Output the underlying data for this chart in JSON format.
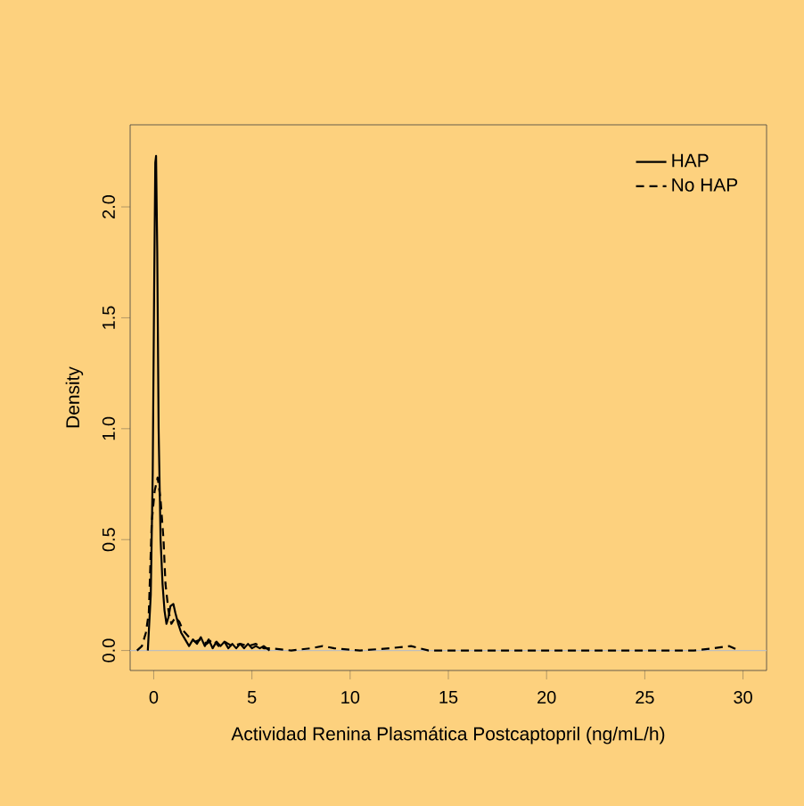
{
  "chart_data": {
    "type": "line",
    "xlabel": "Actividad Renina Plasmática Postcaptopril (ng/mL/h)",
    "ylabel": "Density",
    "xlim": [
      -1.2,
      31.2
    ],
    "ylim": [
      -0.09,
      2.37
    ],
    "xticks": [
      0,
      5,
      10,
      15,
      20,
      25,
      30
    ],
    "yticks": [
      {
        "value": 0,
        "label": "0.0"
      },
      {
        "value": 0.5,
        "label": "0.5"
      },
      {
        "value": 1,
        "label": "1.0"
      },
      {
        "value": 1.5,
        "label": "1.5"
      },
      {
        "value": 2,
        "label": "2.0"
      }
    ],
    "legend": "top right",
    "grid": false,
    "ref_lines": [
      {
        "axis": "y",
        "value": 0,
        "color": "#bebebe"
      }
    ],
    "series": [
      {
        "name": "HAP",
        "color": "#000000",
        "line_style": "solid",
        "x": [
          -0.3,
          -0.15,
          -0.05,
          0.02,
          0.08,
          0.12,
          0.18,
          0.25,
          0.35,
          0.45,
          0.55,
          0.65,
          0.75,
          0.85,
          1.0,
          1.1,
          1.25,
          1.4,
          1.6,
          1.8,
          2.0,
          2.2,
          2.4,
          2.6,
          2.8,
          3.0,
          3.2,
          3.4,
          3.6,
          3.8,
          4.0,
          4.2,
          4.4,
          4.6,
          4.8,
          5.0,
          5.2,
          5.4,
          5.6,
          5.9
        ],
        "values": [
          0,
          0.25,
          0.8,
          1.6,
          2.2,
          2.23,
          1.8,
          1.0,
          0.5,
          0.3,
          0.18,
          0.12,
          0.15,
          0.2,
          0.21,
          0.17,
          0.12,
          0.08,
          0.05,
          0.02,
          0.05,
          0.03,
          0.06,
          0.02,
          0.05,
          0.01,
          0.04,
          0.02,
          0.04,
          0.01,
          0.03,
          0.01,
          0.03,
          0.01,
          0.03,
          0.01,
          0.02,
          0.01,
          0.02,
          0
        ]
      },
      {
        "name": "No HAP",
        "color": "#000000",
        "line_style": "dashed",
        "x": [
          -0.85,
          -0.6,
          -0.4,
          -0.25,
          -0.1,
          0.05,
          0.2,
          0.35,
          0.5,
          0.6,
          0.75,
          0.9,
          1.1,
          1.3,
          1.5,
          1.8,
          2.1,
          2.4,
          2.7,
          3.0,
          3.3,
          3.6,
          4.0,
          4.4,
          4.8,
          5.2,
          5.6,
          6.0,
          7.0,
          8.0,
          8.6,
          9.2,
          10.5,
          12.0,
          13.1,
          14.0,
          16.0,
          20.0,
          24.0,
          27.5,
          28.5,
          29.3,
          29.8
        ],
        "values": [
          0,
          0.02,
          0.08,
          0.17,
          0.58,
          0.72,
          0.78,
          0.68,
          0.5,
          0.3,
          0.18,
          0.12,
          0.15,
          0.13,
          0.09,
          0.06,
          0.04,
          0.05,
          0.03,
          0.05,
          0.02,
          0.04,
          0.02,
          0.03,
          0.02,
          0.03,
          0.01,
          0.01,
          0.0,
          0.01,
          0.02,
          0.01,
          0.0,
          0.01,
          0.02,
          0.0,
          0.0,
          0.0,
          0.0,
          0.0,
          0.01,
          0.02,
          0
        ]
      }
    ]
  }
}
